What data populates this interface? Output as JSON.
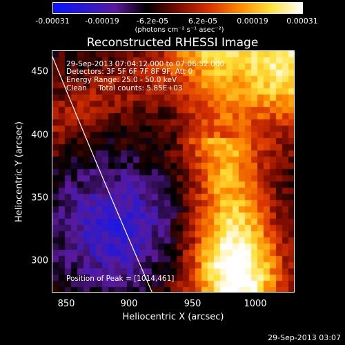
{
  "colorbar": {
    "ticks": [
      "-0.00031",
      "-0.00019",
      "-6.2e-05",
      "6.2e-05",
      "0.00019",
      "0.00031"
    ],
    "unit_label": "(photons cm⁻² s⁻¹ asec⁻²)",
    "colormap": [
      "#0b13ff",
      "#2a1ad0",
      "#5a1a9a",
      "#000000",
      "#7a0c00",
      "#d73200",
      "#ff8a00",
      "#ffe23a",
      "#ffffff"
    ]
  },
  "title": "Reconstructed RHESSI Image",
  "annotations": {
    "time_range": "29-Sep-2013 07:04:12.000 to 07:06:52.000",
    "detectors": "Detectors: 3F 5F 6F 7F 8F 9F, Att 0",
    "energy": "Energy Range: 25.0 - 50.0 keV",
    "clean": "Clean     Total counts: 5.85E+03",
    "peak": "Position of Peak = [1014,461]"
  },
  "axes": {
    "xlabel": "Heliocentric X (arcsec)",
    "ylabel": "Heliocentric Y (arcsec)",
    "xticks": [
      "850",
      "900",
      "950",
      "1000"
    ],
    "yticks": [
      "450",
      "400",
      "350",
      "300"
    ],
    "xlim": [
      838,
      1032
    ],
    "ylim": [
      273,
      467
    ]
  },
  "limb_line": {
    "color": "#ffffff"
  },
  "timestamp": "29-Sep-2013 03:07"
}
